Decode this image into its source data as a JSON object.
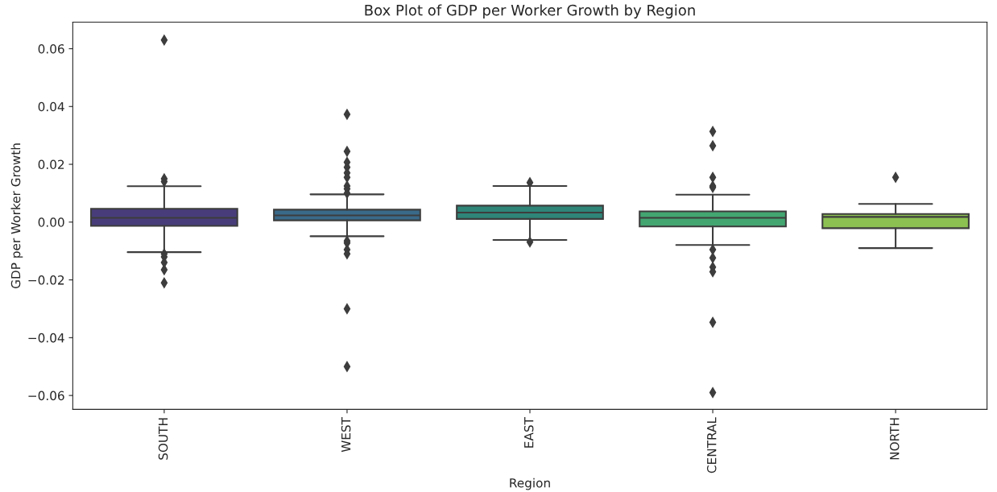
{
  "chart_data": {
    "type": "box",
    "title": "Box Plot of GDP per Worker Growth by Region",
    "xlabel": "Region",
    "ylabel": "GDP per Worker Growth",
    "categories": [
      "SOUTH",
      "WEST",
      "EAST",
      "CENTRAL",
      "NORTH"
    ],
    "colors": [
      "#483d7a",
      "#3a6a8a",
      "#2e8578",
      "#43a671",
      "#8cc152"
    ],
    "boxes": [
      {
        "low": -0.0104,
        "q1": -0.0013,
        "median": 0.0015,
        "q3": 0.0046,
        "high": 0.0124,
        "outliers": [
          0.063,
          0.015,
          0.014,
          -0.011,
          -0.012,
          -0.014,
          -0.0165,
          -0.021
        ]
      },
      {
        "low": -0.0049,
        "q1": 0.0006,
        "median": 0.0023,
        "q3": 0.0043,
        "high": 0.0096,
        "outliers": [
          0.0373,
          0.0245,
          0.0207,
          0.019,
          0.017,
          0.0155,
          0.0125,
          0.0115,
          0.01,
          -0.0065,
          -0.0072,
          -0.0095,
          -0.011,
          -0.03,
          -0.05
        ]
      },
      {
        "low": -0.0062,
        "q1": 0.0011,
        "median": 0.0033,
        "q3": 0.0057,
        "high": 0.0125,
        "outliers": [
          0.0137,
          -0.0069
        ]
      },
      {
        "low": -0.0079,
        "q1": -0.0015,
        "median": 0.0015,
        "q3": 0.0037,
        "high": 0.0095,
        "outliers": [
          0.0314,
          0.0264,
          0.0155,
          0.0125,
          0.012,
          -0.0095,
          -0.0124,
          -0.0156,
          -0.0172,
          -0.0347,
          -0.059
        ]
      },
      {
        "low": -0.009,
        "q1": -0.0021,
        "median": 0.0018,
        "q3": 0.0028,
        "high": 0.0063,
        "outliers": [
          0.0155
        ]
      }
    ],
    "ylim": [
      -0.0648,
      0.0692
    ],
    "yticks": [
      {
        "value": -0.06,
        "label": "−0.06"
      },
      {
        "value": -0.04,
        "label": "−0.04"
      },
      {
        "value": -0.02,
        "label": "−0.02"
      },
      {
        "value": 0,
        "label": "0.00"
      },
      {
        "value": 0.02,
        "label": "0.02"
      },
      {
        "value": 0.04,
        "label": "0.04"
      },
      {
        "value": 0.06,
        "label": "0.06"
      }
    ],
    "marker": "diamond",
    "grid": false
  }
}
